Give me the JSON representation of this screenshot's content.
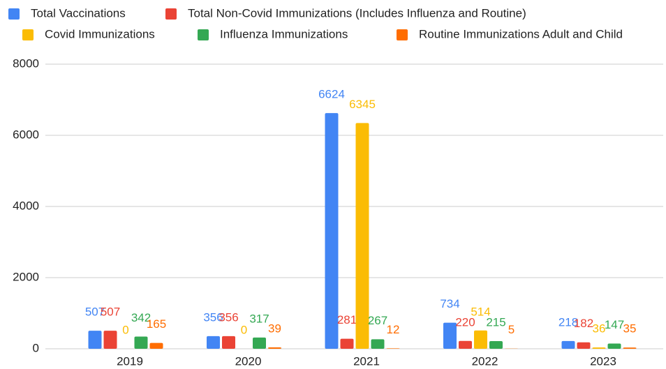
{
  "chart_data": {
    "type": "bar",
    "categories": [
      "2019",
      "2020",
      "2021",
      "2022",
      "2023"
    ],
    "series": [
      {
        "name": "Total Vaccinations",
        "color": "#4285f4",
        "values": [
          507,
          356,
          6624,
          734,
          218
        ]
      },
      {
        "name": "Total Non-Covid Immunizations (Includes Influenza and Routine)",
        "color": "#ea4335",
        "values": [
          507,
          356,
          281,
          220,
          182
        ]
      },
      {
        "name": "Covid Immunizations",
        "color": "#fbbc04",
        "values": [
          0,
          0,
          6345,
          514,
          36
        ]
      },
      {
        "name": "Influenza Immunizations",
        "color": "#34a853",
        "values": [
          342,
          317,
          267,
          215,
          147
        ]
      },
      {
        "name": "Routine Immunizations Adult and Child",
        "color": "#ff6d01",
        "values": [
          165,
          39,
          12,
          5,
          35
        ]
      }
    ],
    "ylim": [
      0,
      8000
    ],
    "yticks": [
      0,
      2000,
      4000,
      6000,
      8000
    ],
    "grid": true,
    "legend": "top"
  }
}
